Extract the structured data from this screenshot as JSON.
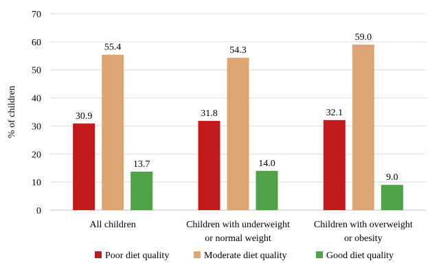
{
  "chart_data": {
    "type": "bar",
    "title": "",
    "xlabel": "",
    "ylabel": "% of children",
    "ylim": [
      0,
      70
    ],
    "yticks": [
      0,
      10,
      20,
      30,
      40,
      50,
      60,
      70
    ],
    "grid": true,
    "legend_position": "bottom",
    "categories": [
      [
        "All children"
      ],
      [
        "Children with underweight",
        "or normal weight"
      ],
      [
        "Children with overweight",
        "or obesity"
      ]
    ],
    "series": [
      {
        "name": "Poor diet quality",
        "color": "#c4191c",
        "values": [
          30.9,
          31.8,
          32.1
        ],
        "labels": [
          "30.9",
          "31.8",
          "32.1"
        ]
      },
      {
        "name": "Moderate diet quality",
        "color": "#dea574",
        "values": [
          55.4,
          54.3,
          59.0
        ],
        "labels": [
          "55.4",
          "54.3",
          "59.0"
        ]
      },
      {
        "name": "Good diet quality",
        "color": "#4ea247",
        "values": [
          13.7,
          14.0,
          9.0
        ],
        "labels": [
          "13.7",
          "14.0",
          "9.0"
        ]
      }
    ]
  }
}
